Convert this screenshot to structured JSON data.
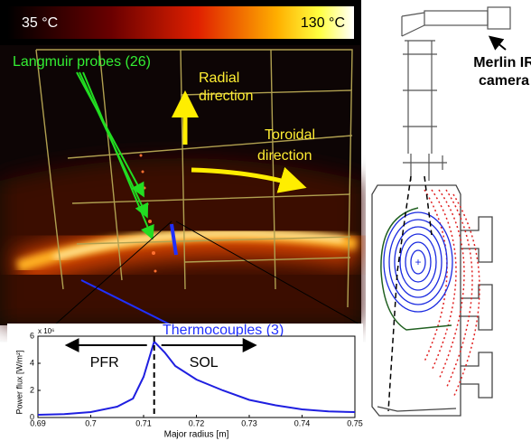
{
  "colorbar": {
    "min_label": "35 °C",
    "max_label": "130 °C"
  },
  "labels": {
    "langmuir": "Langmuir probes (26)",
    "radial": [
      "Radial",
      "direction"
    ],
    "toroidal": [
      "Toroidal",
      "direction"
    ],
    "thermocouples": "Thermocouples (3)",
    "camera": [
      "Merlin IR",
      "camera"
    ]
  },
  "chart_data": {
    "type": "line",
    "xlabel": "Major radius [m]",
    "ylabel": "Power flux [W/m²]",
    "exponent": "x 10⁶",
    "x": [
      0.69,
      0.695,
      0.7,
      0.705,
      0.708,
      0.71,
      0.712,
      0.714,
      0.716,
      0.72,
      0.725,
      0.73,
      0.735,
      0.74,
      0.745,
      0.75
    ],
    "values": [
      0.2,
      0.25,
      0.4,
      0.8,
      1.4,
      3.0,
      5.6,
      4.8,
      3.8,
      2.8,
      2.0,
      1.3,
      0.9,
      0.6,
      0.45,
      0.4
    ],
    "color": "#1f1fe0",
    "xlim": [
      0.69,
      0.75
    ],
    "ylim": [
      0,
      6
    ],
    "xticks": [
      0.69,
      0.7,
      0.71,
      0.72,
      0.73,
      0.74,
      0.75
    ],
    "yticks": [
      0,
      2,
      4,
      6
    ],
    "vline": 0.712,
    "annotations": [
      "PFR",
      "SOL"
    ]
  }
}
